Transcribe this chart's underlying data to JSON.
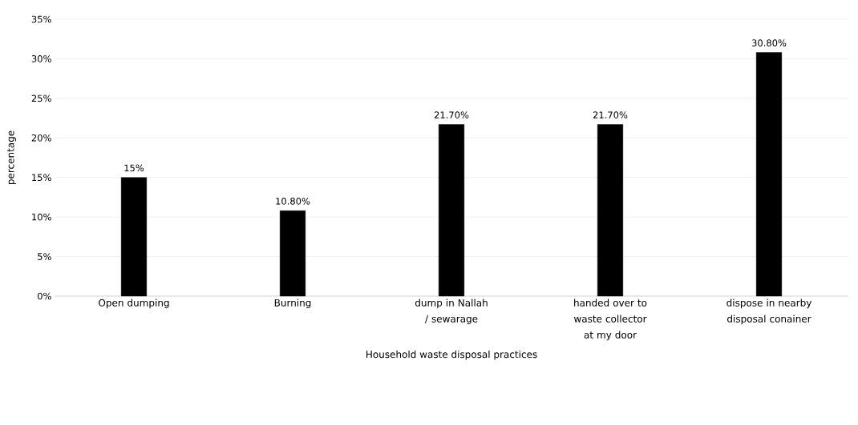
{
  "chart_data": {
    "type": "bar",
    "xlabel": "Household waste disposal practices",
    "ylabel": "percentage",
    "categories": [
      "Open dumping",
      "Burning",
      "dump in Nallah / sewarage",
      "handed over to waste collector at my door",
      "dispose in nearby disposal conainer"
    ],
    "values": [
      15,
      10.8,
      21.7,
      21.7,
      30.8
    ],
    "value_labels": [
      "15%",
      "10.80%",
      "21.70%",
      "21.70%",
      "30.80%"
    ],
    "color": "#000000",
    "ylim": [
      0,
      35
    ],
    "yticks": [
      {
        "value": 0,
        "label": "0%"
      },
      {
        "value": 5,
        "label": "5%"
      },
      {
        "value": 10,
        "label": "10%"
      },
      {
        "value": 15,
        "label": "15%"
      },
      {
        "value": 20,
        "label": "20%"
      },
      {
        "value": 25,
        "label": "25%"
      },
      {
        "value": 30,
        "label": "30%"
      },
      {
        "value": 35,
        "label": "35%"
      }
    ],
    "grid": "y"
  }
}
